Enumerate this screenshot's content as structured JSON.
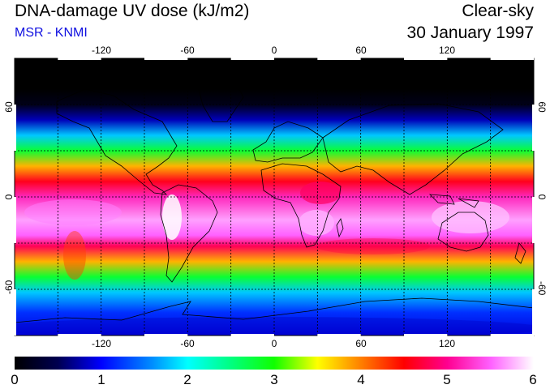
{
  "header": {
    "title": "DNA-damage UV dose (kJ/m2)",
    "subtitle": "MSR - KNMI",
    "condition": "Clear-sky",
    "date": "30 January 1997"
  },
  "colors": {
    "subtitle": "#1010e0",
    "frame": "#000000",
    "grid": "#000000"
  },
  "map": {
    "lon_ticks_top": [
      "-120",
      "-60",
      "0",
      "60",
      "120"
    ],
    "lon_ticks_bottom": [
      "-120",
      "-60",
      "0",
      "60",
      "120"
    ],
    "lat_ticks_left": [
      "60",
      "0",
      "-60"
    ],
    "lat_ticks_right": [
      "60",
      "0",
      "-60"
    ],
    "lon_range": [
      -180,
      180
    ],
    "lat_range": [
      -90,
      90
    ],
    "grid_lons": [
      -150,
      -120,
      -90,
      -60,
      -30,
      0,
      30,
      60,
      90,
      120,
      150
    ],
    "grid_lats": [
      -60,
      -30,
      0,
      30,
      60
    ]
  },
  "colorbar": {
    "min": 0,
    "max": 6,
    "labels": [
      "0",
      "1",
      "2",
      "3",
      "4",
      "5",
      "6"
    ],
    "stops": [
      {
        "v": 0.0,
        "c": "#000000"
      },
      {
        "v": 0.5,
        "c": "#000050"
      },
      {
        "v": 1.0,
        "c": "#0000ff"
      },
      {
        "v": 1.6,
        "c": "#0090ff"
      },
      {
        "v": 2.0,
        "c": "#00ffff"
      },
      {
        "v": 2.5,
        "c": "#00ff80"
      },
      {
        "v": 3.0,
        "c": "#10ff00"
      },
      {
        "v": 3.5,
        "c": "#ffff00"
      },
      {
        "v": 4.0,
        "c": "#ff8000"
      },
      {
        "v": 4.5,
        "c": "#ff0000"
      },
      {
        "v": 5.0,
        "c": "#ff0090"
      },
      {
        "v": 5.5,
        "c": "#ff60ff"
      },
      {
        "v": 6.0,
        "c": "#ffffff"
      }
    ]
  },
  "uv_profile": [
    {
      "lat": 90,
      "v": 0.0
    },
    {
      "lat": 70,
      "v": 0.0
    },
    {
      "lat": 60,
      "v": 0.15
    },
    {
      "lat": 50,
      "v": 0.8
    },
    {
      "lat": 40,
      "v": 1.8
    },
    {
      "lat": 30,
      "v": 2.8
    },
    {
      "lat": 20,
      "v": 3.8
    },
    {
      "lat": 10,
      "v": 4.6
    },
    {
      "lat": 0,
      "v": 5.2
    },
    {
      "lat": -15,
      "v": 5.7
    },
    {
      "lat": -25,
      "v": 5.5
    },
    {
      "lat": -32,
      "v": 4.8
    },
    {
      "lat": -42,
      "v": 3.8
    },
    {
      "lat": -52,
      "v": 2.8
    },
    {
      "lat": -62,
      "v": 1.8
    },
    {
      "lat": -75,
      "v": 1.2
    },
    {
      "lat": -90,
      "v": 0.9
    }
  ]
}
